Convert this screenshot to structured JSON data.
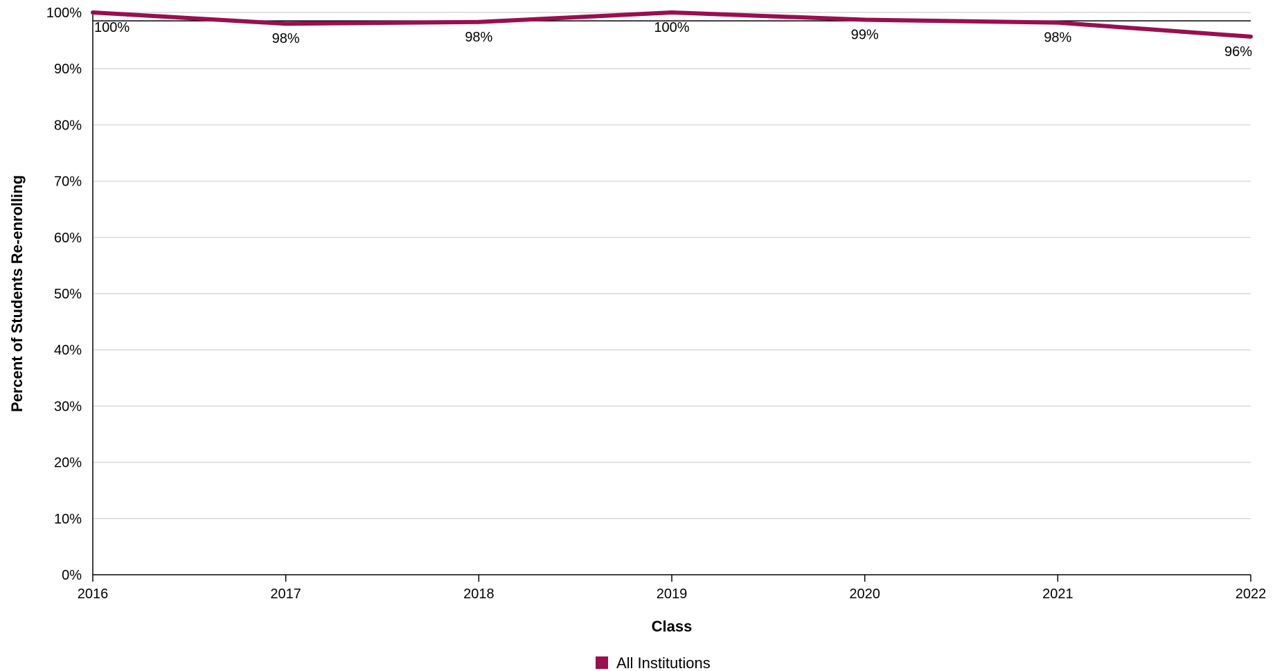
{
  "chart_data": {
    "type": "line",
    "categories": [
      "2016",
      "2017",
      "2018",
      "2019",
      "2020",
      "2021",
      "2022"
    ],
    "series": [
      {
        "name": "All Institutions",
        "values": [
          100,
          98,
          98.3,
          100,
          98.7,
          98.2,
          95.7
        ],
        "labels": [
          "100%",
          "98%",
          "98%",
          "100%",
          "99%",
          "98%",
          "96%"
        ],
        "color": "#990f4f"
      }
    ],
    "reference_line": 98.5,
    "xlabel": "Class",
    "ylabel": "Percent of Students Re-enrolling",
    "ylim": [
      0,
      100
    ],
    "yticks": [
      "0%",
      "10%",
      "20%",
      "30%",
      "40%",
      "50%",
      "60%",
      "70%",
      "80%",
      "90%",
      "100%"
    ],
    "grid": true,
    "legend_position": "bottom"
  }
}
